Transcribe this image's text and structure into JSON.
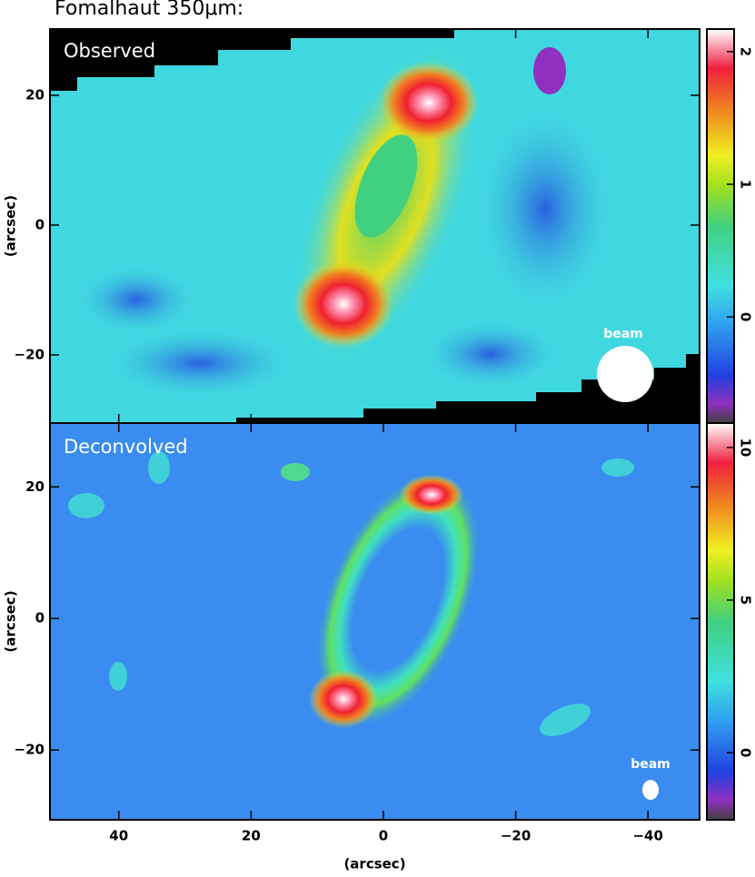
{
  "chart_data": [
    {
      "type": "image",
      "title": "Fomalhaut 350μm:",
      "panel_label": "Observed",
      "beam_label": "beam",
      "xlim": [
        50.4,
        -47.8
      ],
      "xticks": [
        40,
        20,
        0,
        -20,
        -40
      ],
      "ylim": [
        -30.5,
        30.2
      ],
      "yticks": [
        20,
        0,
        {
          "value": -20,
          "label": "−20"
        }
      ],
      "ylabel": "(arcsec)",
      "colorbar_lim": [
        -0.8,
        2.17
      ],
      "colorbar_ticks": [
        0,
        1,
        2
      ]
    },
    {
      "type": "image",
      "panel_label": "Deconvolved",
      "beam_label": "beam",
      "xlim": [
        50.4,
        -47.8
      ],
      "xticks": [
        40,
        20,
        0,
        {
          "value": -20,
          "label": "−20"
        },
        {
          "value": -40,
          "label": "−40"
        }
      ],
      "xlabel": "(arcsec)",
      "ylim": [
        -30.6,
        29.7
      ],
      "yticks": [
        20,
        0,
        {
          "value": -20,
          "label": "−20"
        }
      ],
      "ylabel": "(arcsec)",
      "colorbar_lim": [
        -2.2,
        10.8
      ],
      "colorbar_ticks": [
        0,
        5,
        10
      ]
    }
  ]
}
